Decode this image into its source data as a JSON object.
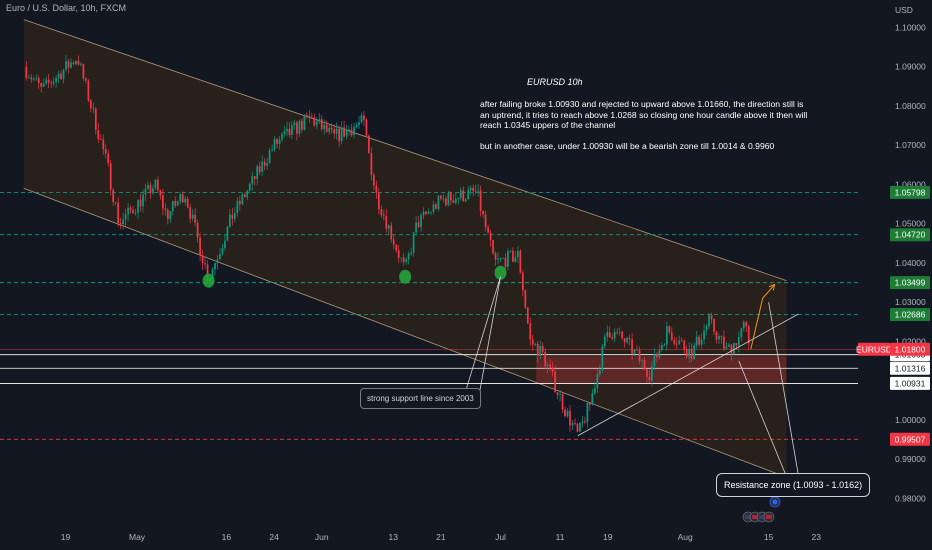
{
  "header": {
    "symbol_line": "Euro / U.S. Dollar, 10h, FXCM",
    "currency": "USD"
  },
  "note": {
    "title": "EURUSD 10h",
    "para1": "after failing broke 1.00930 and rejected to upward above 1.01660, the direction still is an uptrend, it tries to reach above 1.0268 so closing one hour candle above it then will reach 1.0345 uppers of the channel",
    "para2": "but in another case, under 1.00930  will be a bearish zone till 1.0014 & 0.9960"
  },
  "callouts": {
    "support": "strong support line since 2003",
    "resistance": "Resistance zone (1.0093  -  1.0162)"
  },
  "chart_data": {
    "type": "candlestick",
    "symbol": "EURUSD",
    "timeframe": "10h",
    "ylim": [
      0.974,
      1.107
    ],
    "y_ticks": [
      "1.10000",
      "1.09000",
      "1.08000",
      "1.07000",
      "1.06000",
      "1.05000",
      "1.04000",
      "1.03000",
      "1.02000",
      "1.01000",
      "1.00000",
      "0.99000",
      "0.98000"
    ],
    "x_ticks": [
      "19",
      "May",
      "16",
      "24",
      "Jun",
      "13",
      "21",
      "Jul",
      "11",
      "19",
      "Aug",
      "15",
      "23"
    ],
    "x_tick_dates": [
      "2022-04-19",
      "2022-05-01",
      "2022-05-16",
      "2022-05-24",
      "2022-06-01",
      "2022-06-13",
      "2022-06-21",
      "2022-07-01",
      "2022-07-11",
      "2022-07-19",
      "2022-08-01",
      "2022-08-15",
      "2022-08-23"
    ],
    "last_price": {
      "label": "EURUSD",
      "value": "1.01800",
      "color": "#f23645"
    },
    "levels": [
      {
        "value": "1.05798",
        "style": "dashed",
        "color": "#089981"
      },
      {
        "value": "1.04720",
        "style": "dashed",
        "color": "#089981"
      },
      {
        "value": "1.03499",
        "style": "dashed",
        "color": "#089981"
      },
      {
        "value": "1.02686",
        "style": "dashed",
        "color": "#089981"
      },
      {
        "value": "1.01663",
        "style": "solid",
        "color": "#ffffff"
      },
      {
        "value": "1.01316",
        "style": "plain",
        "color": "#ffffff"
      },
      {
        "value": "1.00931",
        "style": "solid",
        "color": "#ffffff"
      },
      {
        "value": "0.99507",
        "style": "dashed",
        "color": "#f23645"
      }
    ],
    "resistance_zone": [
      1.0093,
      1.0162
    ],
    "colors": {
      "up": "#089981",
      "down": "#f23645",
      "channel": "#e0c49a",
      "zone": "#f23645"
    },
    "swing_points": [
      [
        "2022-04-12",
        1.09
      ],
      [
        "2022-04-15",
        1.084
      ],
      [
        "2022-04-21",
        1.0925
      ],
      [
        "2022-04-26",
        1.065
      ],
      [
        "2022-04-28",
        1.05
      ],
      [
        "2022-05-04",
        1.06
      ],
      [
        "2022-05-06",
        1.052
      ],
      [
        "2022-05-09",
        1.058
      ],
      [
        "2022-05-13",
        1.036
      ],
      [
        "2022-05-17",
        1.052
      ],
      [
        "2022-05-24",
        1.07
      ],
      [
        "2022-05-30",
        1.077
      ],
      [
        "2022-06-03",
        1.072
      ],
      [
        "2022-06-08",
        1.076
      ],
      [
        "2022-06-10",
        1.058
      ],
      [
        "2022-06-15",
        1.038
      ],
      [
        "2022-06-17",
        1.05
      ],
      [
        "2022-06-21",
        1.056
      ],
      [
        "2022-06-27",
        1.058
      ],
      [
        "2022-06-30",
        1.04
      ],
      [
        "2022-07-04",
        1.042
      ],
      [
        "2022-07-06",
        1.02
      ],
      [
        "2022-07-08",
        1.017
      ],
      [
        "2022-07-12",
        1.002
      ],
      [
        "2022-07-14",
        0.996
      ],
      [
        "2022-07-16",
        1.004
      ],
      [
        "2022-07-19",
        1.023
      ],
      [
        "2022-07-22",
        1.02
      ],
      [
        "2022-07-26",
        1.012
      ],
      [
        "2022-07-29",
        1.023
      ],
      [
        "2022-08-02",
        1.017
      ],
      [
        "2022-08-05",
        1.025
      ],
      [
        "2022-08-08",
        1.0175
      ],
      [
        "2022-08-10",
        1.021
      ],
      [
        "2022-08-11",
        1.024
      ],
      [
        "2022-08-12",
        1.018
      ]
    ],
    "projection": [
      [
        "2022-08-12",
        1.018
      ],
      [
        "2022-08-14",
        1.031
      ],
      [
        "2022-08-16",
        1.0345
      ]
    ],
    "channel": {
      "upper": [
        [
          "2022-04-12",
          1.102
        ],
        [
          "2022-08-18",
          1.0355
        ]
      ],
      "lower": [
        [
          "2022-04-12",
          1.059
        ],
        [
          "2022-08-10",
          0.99
        ]
      ]
    },
    "trendline": [
      [
        "2022-07-14",
        0.996
      ],
      [
        "2022-08-20",
        1.027
      ]
    ]
  }
}
